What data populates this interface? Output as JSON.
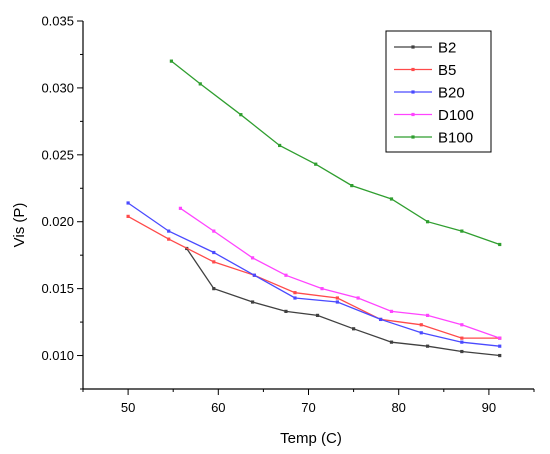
{
  "chart_data": {
    "type": "line",
    "title": "",
    "xlabel": "Temp (C)",
    "ylabel": "Vis (P)",
    "xlim": [
      45,
      95
    ],
    "ylim": [
      0.0075,
      0.035
    ],
    "xticks": [
      50,
      60,
      70,
      80,
      90
    ],
    "xtick_labels": [
      "50",
      "60",
      "70",
      "80",
      "90"
    ],
    "yticks": [
      0.01,
      0.015,
      0.02,
      0.025,
      0.03,
      0.035
    ],
    "ytick_labels": [
      "0.010",
      "0.015",
      "0.020",
      "0.025",
      "0.030",
      "0.035"
    ],
    "grid": false,
    "legend_position": "top-right",
    "series": [
      {
        "name": "B2",
        "color": "#404040",
        "x": [
          56.5,
          59.5,
          63.8,
          67.5,
          71.0,
          75.0,
          79.2,
          83.2,
          87.0,
          91.2
        ],
        "y": [
          0.018,
          0.015,
          0.014,
          0.0133,
          0.013,
          0.012,
          0.011,
          0.0107,
          0.0103,
          0.01
        ]
      },
      {
        "name": "B5",
        "color": "#ff4a4a",
        "x": [
          50.0,
          54.5,
          59.5,
          64.0,
          68.5,
          73.2,
          78.0,
          82.5,
          87.0,
          91.2
        ],
        "y": [
          0.0204,
          0.0187,
          0.017,
          0.016,
          0.0147,
          0.0143,
          0.0127,
          0.0123,
          0.0113,
          0.0113
        ]
      },
      {
        "name": "B20",
        "color": "#4a4aff",
        "x": [
          50.0,
          54.5,
          59.5,
          64.0,
          68.5,
          73.2,
          78.0,
          82.5,
          87.0,
          91.2
        ],
        "y": [
          0.0214,
          0.0193,
          0.0177,
          0.016,
          0.0143,
          0.014,
          0.0127,
          0.0117,
          0.011,
          0.0107
        ]
      },
      {
        "name": "D100",
        "color": "#ff44ff",
        "x": [
          55.8,
          59.5,
          63.8,
          67.5,
          71.5,
          75.5,
          79.2,
          83.2,
          87.0,
          91.2
        ],
        "y": [
          0.021,
          0.0193,
          0.0173,
          0.016,
          0.015,
          0.0143,
          0.0133,
          0.013,
          0.0123,
          0.0113
        ]
      },
      {
        "name": "B100",
        "color": "#2f9e2f",
        "x": [
          54.8,
          58.0,
          62.5,
          66.8,
          70.8,
          74.8,
          79.2,
          83.2,
          87.0,
          91.2
        ],
        "y": [
          0.032,
          0.0303,
          0.028,
          0.0257,
          0.0243,
          0.0227,
          0.0217,
          0.02,
          0.0193,
          0.0183
        ]
      }
    ]
  }
}
